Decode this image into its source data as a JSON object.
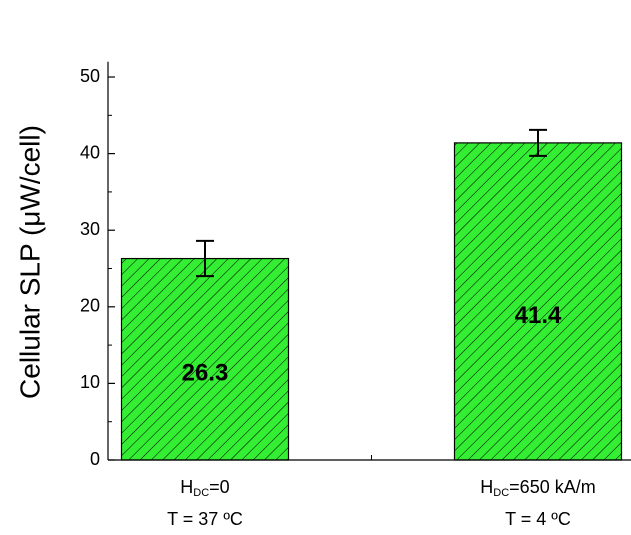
{
  "chart_data": {
    "type": "bar",
    "ylabel": "Cellular SLP (μW/cell)",
    "categories": [
      [
        "H",
        "DC",
        "=0",
        "T = 37 ºC"
      ],
      [
        "H",
        "DC",
        "=650 kA/m",
        "T = 4 ºC"
      ]
    ],
    "values": [
      26.3,
      41.4
    ],
    "errors": [
      2.3,
      1.7
    ],
    "color": "#33ee33",
    "hatch": true,
    "ylim": [
      0,
      52
    ],
    "yticks": [
      0,
      10,
      20,
      30,
      40,
      50
    ],
    "minor_yticks": [
      5,
      15,
      25,
      35,
      45
    ]
  }
}
